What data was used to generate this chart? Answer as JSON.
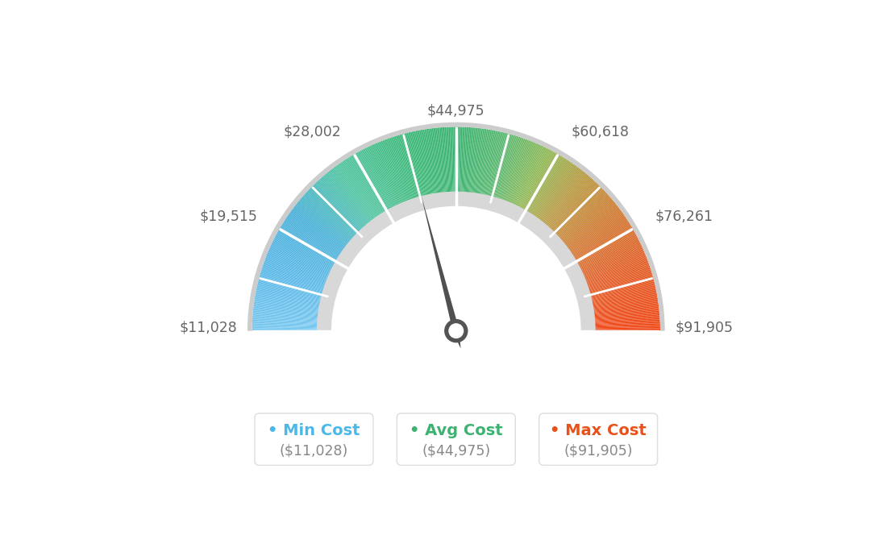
{
  "min_val": 11028,
  "max_val": 91905,
  "avg_val": 44975,
  "labels": {
    "min": "$11,028",
    "label2": "$19,515",
    "label3": "$28,002",
    "avg": "$44,975",
    "label5": "$60,618",
    "label6": "$76,261",
    "max": "$91,905"
  },
  "legend": [
    {
      "label": "Min Cost",
      "value": "($11,028)",
      "color": "#4ab8e8",
      "dot_color": "#4ab8e8"
    },
    {
      "label": "Avg Cost",
      "value": "($44,975)",
      "color": "#3cb371",
      "dot_color": "#3cb371"
    },
    {
      "label": "Max Cost",
      "value": "($91,905)",
      "color": "#e8521a",
      "dot_color": "#e8521a"
    }
  ],
  "color_stops": [
    [
      0.0,
      "#78c8f0"
    ],
    [
      0.1,
      "#5ab8e8"
    ],
    [
      0.2,
      "#48b0d8"
    ],
    [
      0.3,
      "#50c4a0"
    ],
    [
      0.42,
      "#3cb878"
    ],
    [
      0.5,
      "#3cb371"
    ],
    [
      0.58,
      "#5ab870"
    ],
    [
      0.65,
      "#90b855"
    ],
    [
      0.72,
      "#b89840"
    ],
    [
      0.8,
      "#d07830"
    ],
    [
      0.88,
      "#e06028"
    ],
    [
      1.0,
      "#f04818"
    ]
  ],
  "background_color": "#ffffff",
  "outer_r": 1.12,
  "inner_r": 0.68,
  "gap_outer_r": 0.695,
  "gap_inner_r": 0.645,
  "needle_color": "#505050",
  "hub_outer_color": "#505050",
  "hub_inner_color": "#ffffff",
  "tick_color": "#ffffff",
  "label_color": "#666666",
  "legend_text_color": "#888888",
  "legend_border_color": "#dddddd"
}
